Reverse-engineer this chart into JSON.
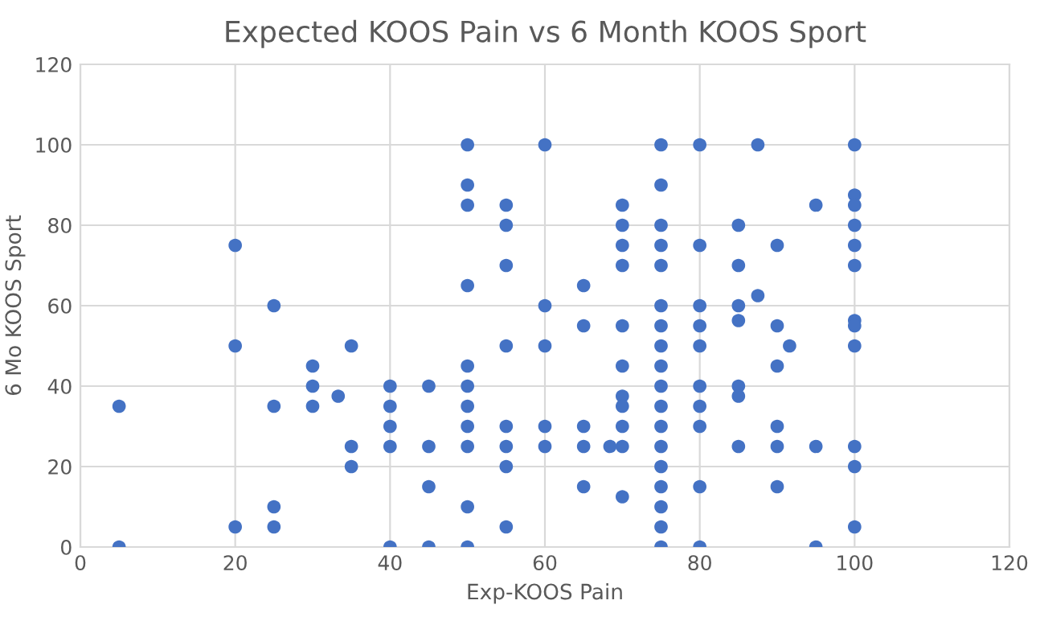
{
  "chart_data": {
    "type": "scatter",
    "title": "Expected KOOS Pain vs 6 Month KOOS Sport",
    "xlabel": "Exp-KOOS Pain",
    "ylabel": "6 Mo KOOS Sport",
    "series": [
      {
        "color": "#4472c4",
        "x": [
          5,
          5,
          20,
          20,
          20,
          25,
          25,
          25,
          25,
          30,
          30,
          30,
          33.3,
          35,
          35,
          35,
          40,
          40,
          40,
          40,
          40,
          45,
          45,
          45,
          45,
          50,
          50,
          50,
          50,
          50,
          50,
          50,
          50,
          50,
          50,
          50,
          55,
          55,
          55,
          55,
          55,
          55,
          55,
          55,
          60,
          60,
          60,
          60,
          60,
          65,
          65,
          65,
          65,
          65,
          68.4,
          70,
          70,
          70,
          70,
          70,
          70,
          70,
          70,
          70,
          70,
          70,
          75,
          75,
          75,
          75,
          75,
          75,
          75,
          75,
          75,
          75,
          75,
          75,
          75,
          75,
          75,
          75,
          75,
          75,
          80,
          80,
          80,
          80,
          80,
          80,
          80,
          80,
          80,
          80,
          85,
          85,
          85,
          85,
          85,
          85,
          85,
          87.5,
          87.5,
          90,
          90,
          90,
          90,
          90,
          90,
          91.6,
          95,
          95,
          95,
          100,
          100,
          100,
          100,
          100,
          100,
          100,
          100,
          100,
          100,
          100,
          100
        ],
        "values": [
          35,
          0,
          75,
          50,
          5,
          60,
          35,
          10,
          5,
          45,
          40,
          35,
          37.5,
          50,
          25,
          20,
          40,
          35,
          30,
          25,
          0,
          40,
          25,
          15,
          0,
          100,
          90,
          85,
          65,
          45,
          40,
          35,
          30,
          25,
          10,
          0,
          85,
          80,
          70,
          50,
          30,
          25,
          20,
          5,
          100,
          60,
          50,
          30,
          25,
          65,
          55,
          30,
          25,
          15,
          25,
          85,
          80,
          75,
          70,
          55,
          45,
          37.5,
          35,
          30,
          25,
          12.5,
          100,
          90,
          80,
          75,
          70,
          60,
          55,
          50,
          45,
          40,
          35,
          30,
          25,
          20,
          15,
          10,
          5,
          0,
          100,
          75,
          60,
          55,
          50,
          40,
          35,
          30,
          15,
          0,
          80,
          70,
          60,
          56.3,
          40,
          37.5,
          25,
          100,
          62.5,
          75,
          55,
          45,
          30,
          25,
          15,
          50,
          85,
          25,
          0,
          100,
          87.5,
          85,
          80,
          75,
          70,
          56.3,
          55,
          50,
          25,
          20,
          5
        ]
      }
    ],
    "xlim": [
      0,
      120
    ],
    "xticks": [
      0,
      20,
      40,
      60,
      80,
      100,
      120
    ],
    "ylim": [
      0,
      120
    ],
    "yticks": [
      0,
      20,
      40,
      60,
      80,
      100,
      120
    ],
    "grid": true,
    "marker": "circle"
  }
}
